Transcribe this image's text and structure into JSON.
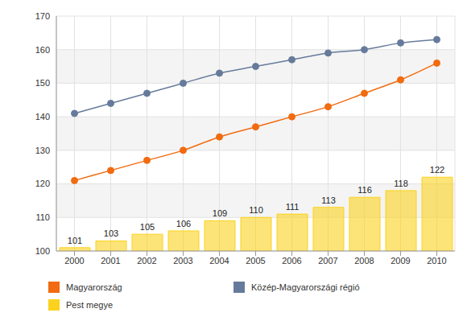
{
  "chart_data": {
    "type": "bar",
    "categories": [
      "2000",
      "2001",
      "2002",
      "2003",
      "2004",
      "2005",
      "2006",
      "2007",
      "2008",
      "2009",
      "2010"
    ],
    "series": [
      {
        "name": "Magyarország",
        "type": "line",
        "marker": "circle",
        "color": "#f26b10",
        "values": [
          121,
          124,
          127,
          130,
          134,
          137,
          140,
          143,
          147,
          151,
          156
        ]
      },
      {
        "name": "Közép-Magyarországi régió",
        "type": "line",
        "marker": "circle",
        "color": "#667b9b",
        "values": [
          141,
          144,
          147,
          150,
          153,
          155,
          157,
          159,
          160,
          162,
          163
        ]
      },
      {
        "name": "Pest megye",
        "type": "bar",
        "data_labels": true,
        "color": "#fbd21e",
        "values": [
          101,
          103,
          105,
          106,
          109,
          110,
          111,
          113,
          116,
          118,
          122
        ]
      }
    ],
    "ylim": [
      100,
      170
    ],
    "yticks": [
      100,
      110,
      120,
      130,
      140,
      150,
      160,
      170
    ],
    "grid": true
  }
}
